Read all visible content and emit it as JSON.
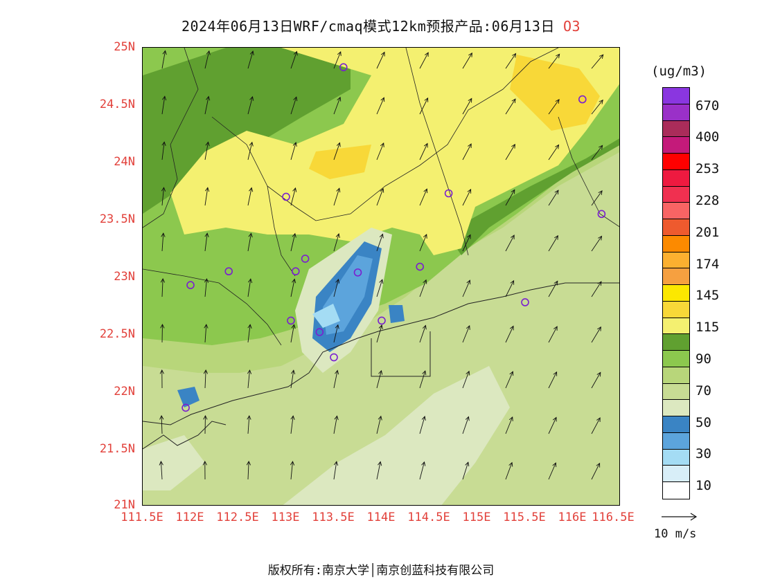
{
  "title": {
    "text": "2024年06月13日WRF/cmaq模式12km预报产品:06月13日",
    "species": "O3"
  },
  "x_ticks": [
    "111.5E",
    "112E",
    "112.5E",
    "113E",
    "113.5E",
    "114E",
    "114.5E",
    "115E",
    "115.5E",
    "116E",
    "116.5E"
  ],
  "y_ticks": [
    "25N",
    "24.5N",
    "24N",
    "23.5N",
    "23N",
    "22.5N",
    "22N",
    "21.5N",
    "21N"
  ],
  "legend": {
    "unit": "(ug/m3)",
    "colors": [
      "#8a36e0",
      "#9a30c8",
      "#aa2c5a",
      "#c41a7a",
      "#ff0000",
      "#ee1a40",
      "#f03050",
      "#f86464",
      "#ee5a2e",
      "#fc8a00",
      "#fcb030",
      "#f6a040",
      "#fce800",
      "#f8d838",
      "#f4f070",
      "#60a030",
      "#8cc84e",
      "#b8d67a",
      "#c8dc94",
      "#dce8c0",
      "#3a84c4",
      "#5ca4dc",
      "#a4dcf4",
      "#d8eef8",
      "#ffffff"
    ],
    "labels": [
      "670",
      "400",
      "253",
      "228",
      "201",
      "174",
      "145",
      "115",
      "90",
      "70",
      "50",
      "30",
      "10"
    ]
  },
  "wind_key": {
    "label": "10 m/s"
  },
  "copyright": "版权所有:南京大学│南京创蓝科技有限公司",
  "map": {
    "lon_range": [
      111.5,
      116.5
    ],
    "lat_range": [
      21,
      25
    ],
    "stations": [
      [
        113.6,
        24.83
      ],
      [
        116.1,
        24.55
      ],
      [
        113.0,
        23.7
      ],
      [
        114.7,
        23.73
      ],
      [
        116.3,
        23.55
      ],
      [
        113.2,
        23.16
      ],
      [
        112.4,
        23.05
      ],
      [
        113.1,
        23.05
      ],
      [
        113.75,
        23.04
      ],
      [
        114.4,
        23.09
      ],
      [
        112.0,
        22.93
      ],
      [
        115.5,
        22.78
      ],
      [
        113.05,
        22.62
      ],
      [
        114.0,
        22.62
      ],
      [
        113.35,
        22.52
      ],
      [
        113.5,
        22.3
      ],
      [
        111.95,
        21.86
      ]
    ]
  }
}
